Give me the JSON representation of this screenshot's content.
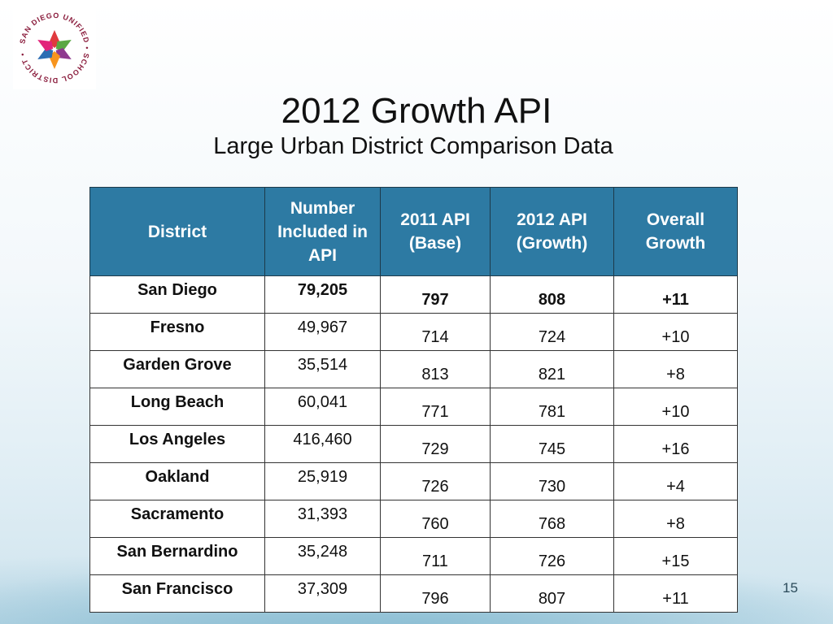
{
  "logo": {
    "text": "SAN DIEGO UNIFIED SCHOOL DISTRICT",
    "icon": "star-logo-icon"
  },
  "title": "2012 Growth API",
  "subtitle": "Large Urban District Comparison Data",
  "table": {
    "headers": [
      "District",
      "Number Included in API",
      "2011 API (Base)",
      "2012 API (Growth)",
      "Overall Growth"
    ],
    "rows": [
      [
        "San Diego",
        "79,205",
        "797",
        "808",
        "+11"
      ],
      [
        "Fresno",
        "49,967",
        "714",
        "724",
        "+10"
      ],
      [
        "Garden Grove",
        "35,514",
        "813",
        "821",
        "+8"
      ],
      [
        "Long Beach",
        "60,041",
        "771",
        "781",
        "+10"
      ],
      [
        "Los Angeles",
        "416,460",
        "729",
        "745",
        "+16"
      ],
      [
        "Oakland",
        "25,919",
        "726",
        "730",
        "+4"
      ],
      [
        "Sacramento",
        "31,393",
        "760",
        "768",
        "+8"
      ],
      [
        "San Bernardino",
        "35,248",
        "711",
        "726",
        "+15"
      ],
      [
        "San Francisco",
        "37,309",
        "796",
        "807",
        "+11"
      ]
    ]
  },
  "page_number": "15",
  "colors": {
    "header_bg": "#2d7aa3",
    "header_text": "#ffffff"
  }
}
